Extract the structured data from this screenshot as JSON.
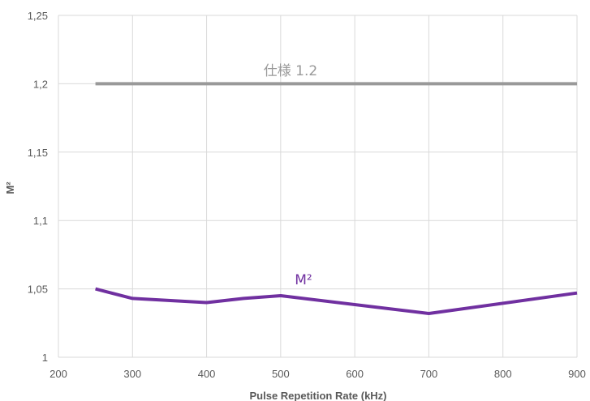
{
  "chart_data": {
    "type": "line",
    "title": "",
    "xlabel": "Pulse Repetition Rate (kHz)",
    "ylabel": "M²",
    "xlim": [
      200,
      900
    ],
    "ylim": [
      1,
      1.25
    ],
    "x_ticks": [
      "200",
      "300",
      "400",
      "500",
      "600",
      "700",
      "800",
      "900"
    ],
    "y_ticks": [
      "1",
      "1,05",
      "1,1",
      "1,15",
      "1,2",
      "1,25"
    ],
    "grid": true,
    "legend": "none",
    "series": [
      {
        "name": "仕様 1.2",
        "color": "#999999",
        "x": [
          250,
          900
        ],
        "y": [
          1.2,
          1.2
        ]
      },
      {
        "name": "M²",
        "color": "#7030a0",
        "x": [
          250,
          300,
          400,
          450,
          500,
          700,
          900
        ],
        "y": [
          1.05,
          1.043,
          1.04,
          1.043,
          1.045,
          1.032,
          1.047
        ]
      }
    ]
  }
}
